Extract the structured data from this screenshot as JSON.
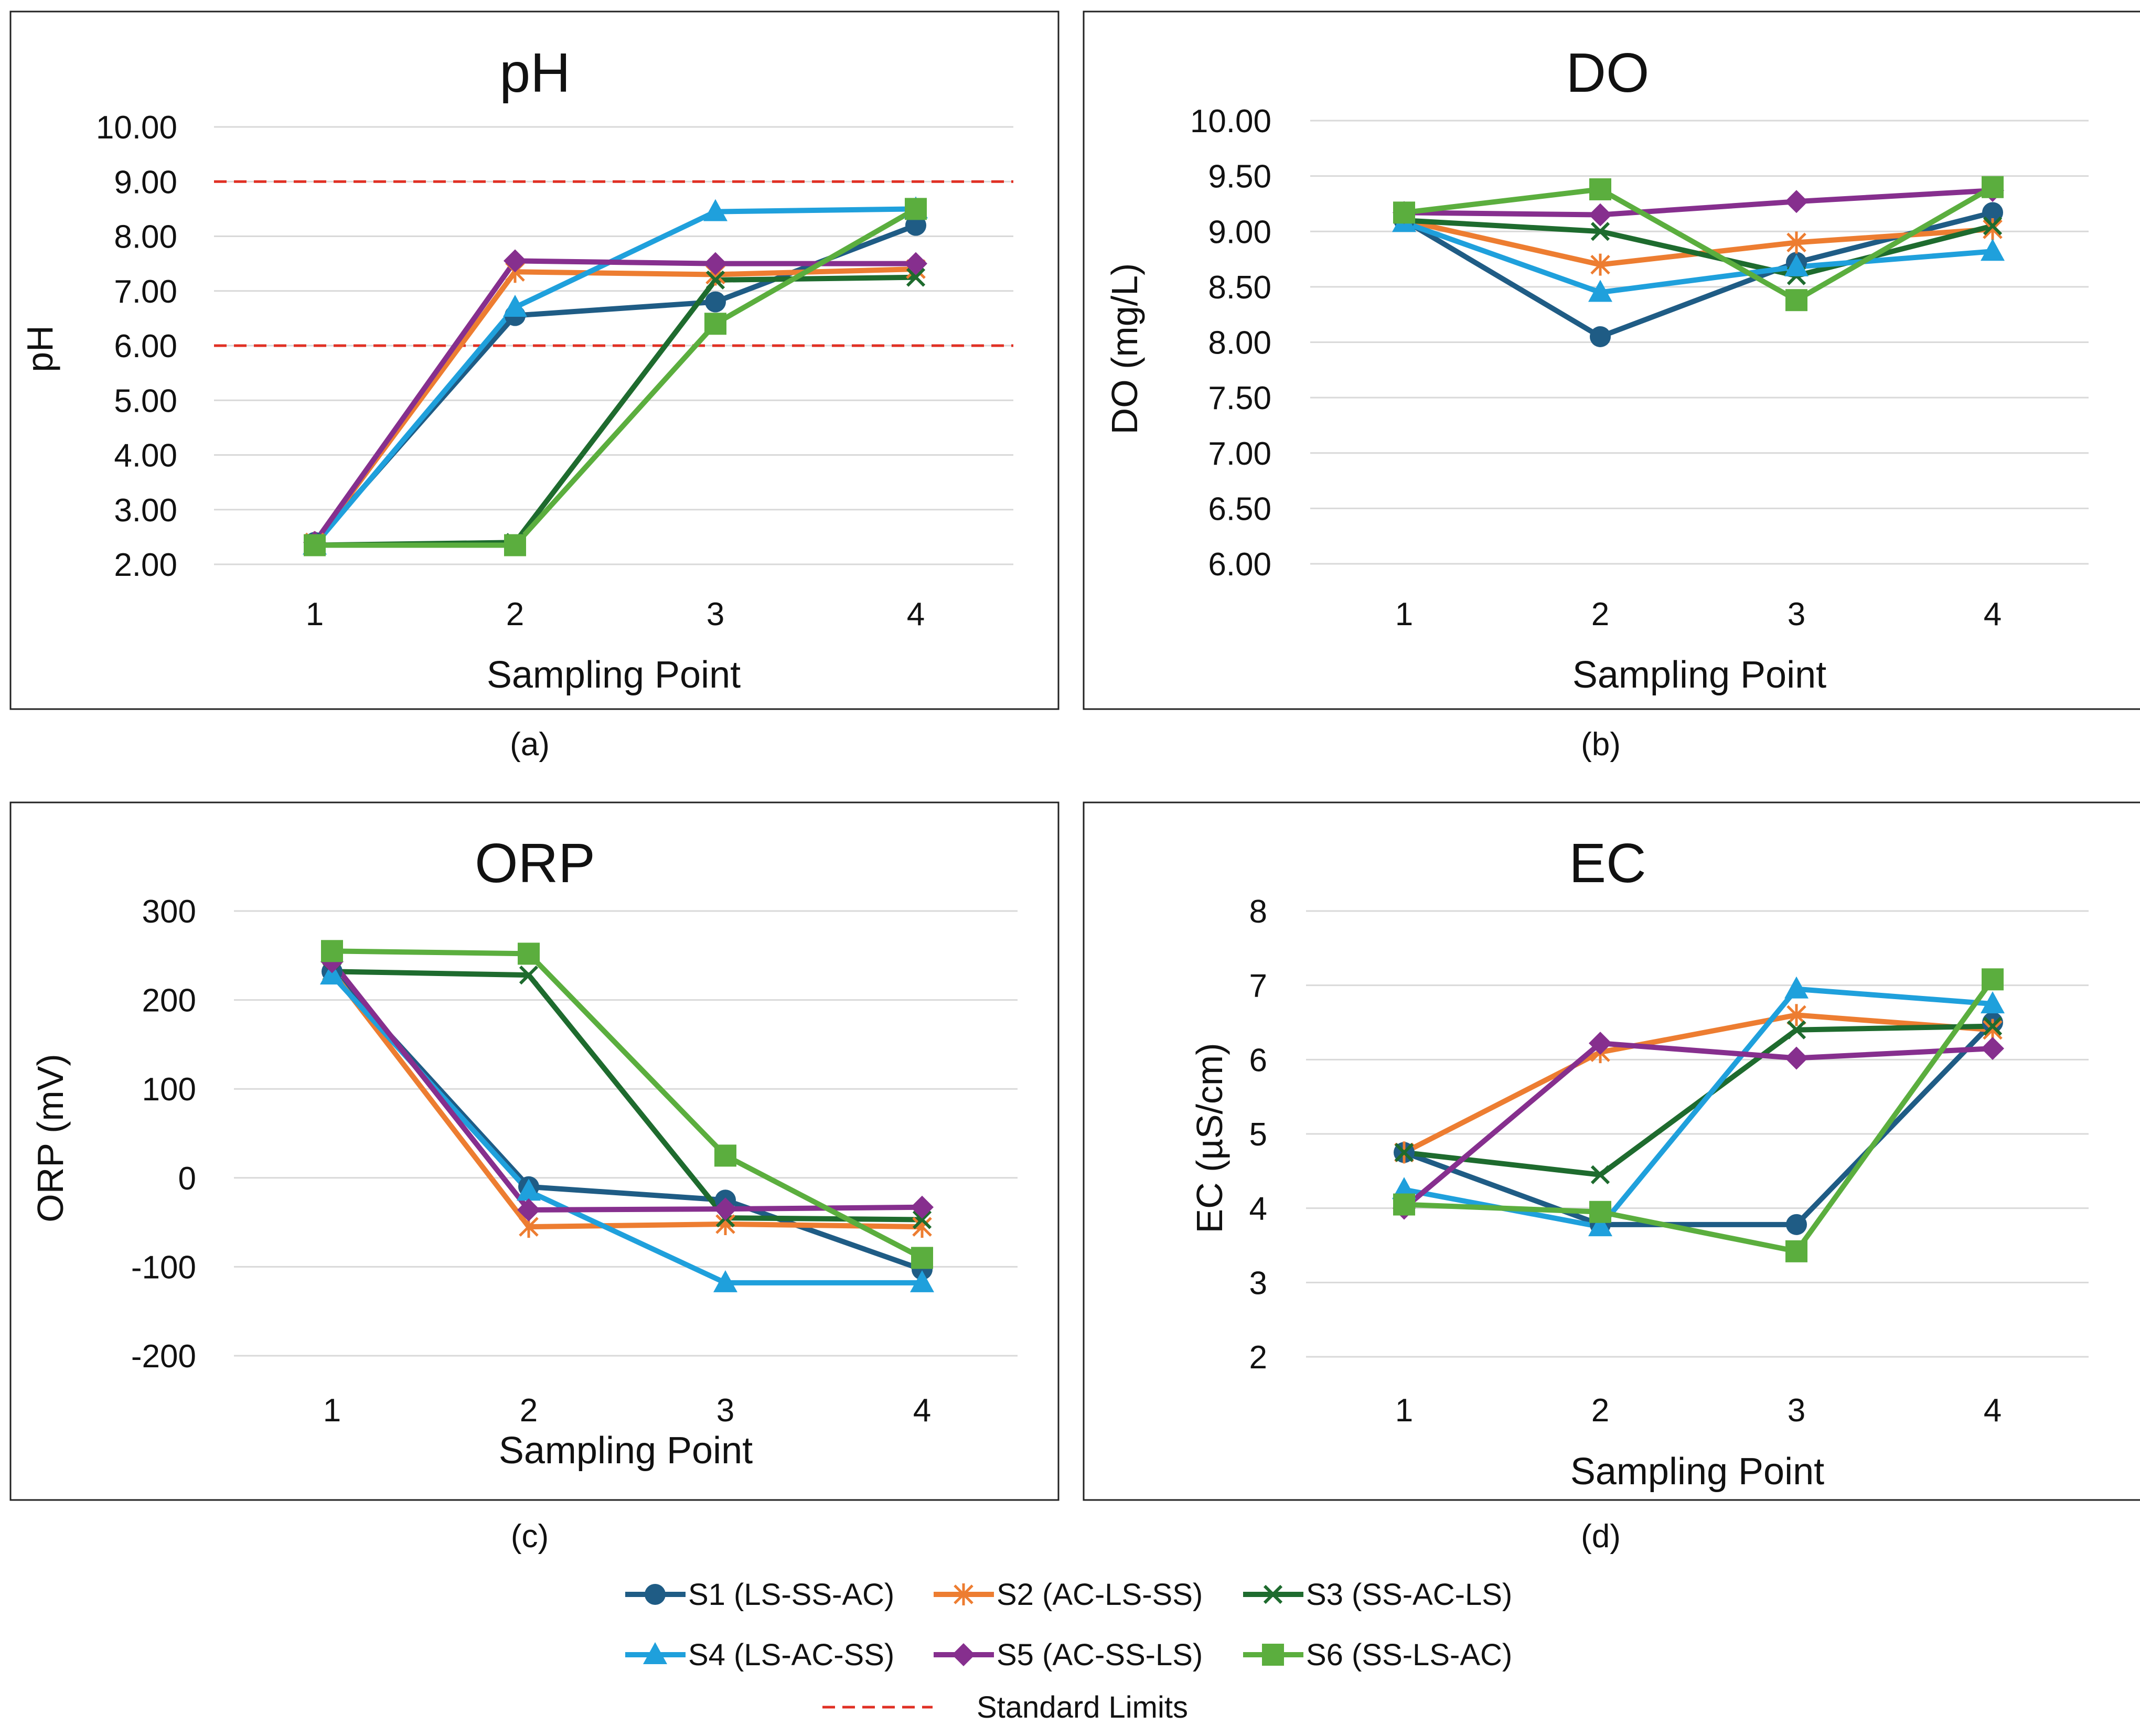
{
  "figure": {
    "legend": {
      "series": [
        {
          "name": "S1 (LS-SS-AC)",
          "color": "#1F5C85",
          "marker": "circle"
        },
        {
          "name": "S2 (AC-LS-SS)",
          "color": "#ED7D31",
          "marker": "star"
        },
        {
          "name": "S3 (SS-AC-LS)",
          "color": "#1E6B2E",
          "marker": "x"
        },
        {
          "name": "S4 (LS-AC-SS)",
          "color": "#1FA0DC",
          "marker": "triangle"
        },
        {
          "name": "S5 (AC-SS-LS)",
          "color": "#862F8E",
          "marker": "diamond"
        },
        {
          "name": "S6 (SS-LS-AC)",
          "color": "#5BAE3E",
          "marker": "square"
        }
      ],
      "standard_limits_label": "Standard Limits",
      "standard_limits_color": "#E03024"
    }
  },
  "chart_data": [
    {
      "type": "line",
      "panel_label": "(a)",
      "title": "pH",
      "xlabel": "Sampling Point",
      "ylabel": "pH",
      "categories": [
        "1",
        "2",
        "3",
        "4"
      ],
      "ylim": [
        2,
        10
      ],
      "ytick_step": 1,
      "ytick_labels": [
        "2.00",
        "3.00",
        "4.00",
        "5.00",
        "6.00",
        "7.00",
        "8.00",
        "9.00",
        "10.00"
      ],
      "reference_lines": [
        6,
        9
      ],
      "series": [
        {
          "name": "S1 (LS-SS-AC)",
          "values": [
            2.4,
            6.55,
            6.8,
            8.2
          ]
        },
        {
          "name": "S2 (AC-LS-SS)",
          "values": [
            2.4,
            7.35,
            7.3,
            7.4
          ]
        },
        {
          "name": "S3 (SS-AC-LS)",
          "values": [
            2.35,
            2.4,
            7.2,
            7.25
          ]
        },
        {
          "name": "S4 (LS-AC-SS)",
          "values": [
            2.35,
            6.7,
            8.45,
            8.5
          ]
        },
        {
          "name": "S5 (AC-SS-LS)",
          "values": [
            2.4,
            7.55,
            7.5,
            7.5
          ]
        },
        {
          "name": "S6 (SS-LS-AC)",
          "values": [
            2.35,
            2.35,
            6.4,
            8.5
          ]
        }
      ]
    },
    {
      "type": "line",
      "panel_label": "(b)",
      "title": "DO",
      "xlabel": "Sampling Point",
      "ylabel": "DO (mg/L)",
      "categories": [
        "1",
        "2",
        "3",
        "4"
      ],
      "ylim": [
        6,
        10
      ],
      "ytick_step": 0.5,
      "ytick_labels": [
        "6.00",
        "6.50",
        "7.00",
        "7.50",
        "8.00",
        "8.50",
        "9.00",
        "9.50",
        "10.00"
      ],
      "reference_lines": [],
      "series": [
        {
          "name": "S1 (LS-SS-AC)",
          "values": [
            9.1,
            8.05,
            8.72,
            9.17
          ]
        },
        {
          "name": "S2 (AC-LS-SS)",
          "values": [
            9.1,
            8.7,
            8.9,
            9.02
          ]
        },
        {
          "name": "S3 (SS-AC-LS)",
          "values": [
            9.1,
            9.0,
            8.6,
            9.05
          ]
        },
        {
          "name": "S4 (LS-AC-SS)",
          "values": [
            9.08,
            8.45,
            8.68,
            8.82
          ]
        },
        {
          "name": "S5 (AC-SS-LS)",
          "values": [
            9.17,
            9.15,
            9.27,
            9.37
          ]
        },
        {
          "name": "S6 (SS-LS-AC)",
          "values": [
            9.17,
            9.38,
            8.38,
            9.4
          ]
        }
      ]
    },
    {
      "type": "line",
      "panel_label": "(c)",
      "title": "ORP",
      "xlabel": "Sampling Point",
      "ylabel": "ORP (mV)",
      "categories": [
        "1",
        "2",
        "3",
        "4"
      ],
      "ylim": [
        -200,
        300
      ],
      "ytick_step": 100,
      "ytick_labels": [
        "-200",
        "-100",
        "0",
        "100",
        "200",
        "300"
      ],
      "reference_lines": [],
      "series": [
        {
          "name": "S1 (LS-SS-AC)",
          "values": [
            232,
            -10,
            -25,
            -103
          ]
        },
        {
          "name": "S2 (AC-LS-SS)",
          "values": [
            232,
            -55,
            -52,
            -55
          ]
        },
        {
          "name": "S3 (SS-AC-LS)",
          "values": [
            232,
            228,
            -45,
            -47
          ]
        },
        {
          "name": "S4 (LS-AC-SS)",
          "values": [
            228,
            -15,
            -118,
            -118
          ]
        },
        {
          "name": "S5 (AC-SS-LS)",
          "values": [
            243,
            -36,
            -35,
            -33
          ]
        },
        {
          "name": "S6 (SS-LS-AC)",
          "values": [
            255,
            252,
            25,
            -90
          ]
        }
      ]
    },
    {
      "type": "line",
      "panel_label": "(d)",
      "title": "EC",
      "xlabel": "Sampling Point",
      "ylabel": "EC (µS/cm)",
      "categories": [
        "1",
        "2",
        "3",
        "4"
      ],
      "ylim": [
        2,
        8
      ],
      "ytick_step": 1,
      "ytick_labels": [
        "2",
        "3",
        "4",
        "5",
        "6",
        "7",
        "8"
      ],
      "reference_lines": [],
      "series": [
        {
          "name": "S1 (LS-SS-AC)",
          "values": [
            4.75,
            3.78,
            3.78,
            6.5
          ]
        },
        {
          "name": "S2 (AC-LS-SS)",
          "values": [
            4.75,
            6.1,
            6.6,
            6.4
          ]
        },
        {
          "name": "S3 (SS-AC-LS)",
          "values": [
            4.75,
            4.45,
            6.4,
            6.45
          ]
        },
        {
          "name": "S4 (LS-AC-SS)",
          "values": [
            4.25,
            3.75,
            6.95,
            6.75
          ]
        },
        {
          "name": "S5 (AC-SS-LS)",
          "values": [
            4.0,
            6.22,
            6.02,
            6.15
          ]
        },
        {
          "name": "S6 (SS-LS-AC)",
          "values": [
            4.05,
            3.95,
            3.42,
            7.08
          ]
        }
      ]
    }
  ]
}
